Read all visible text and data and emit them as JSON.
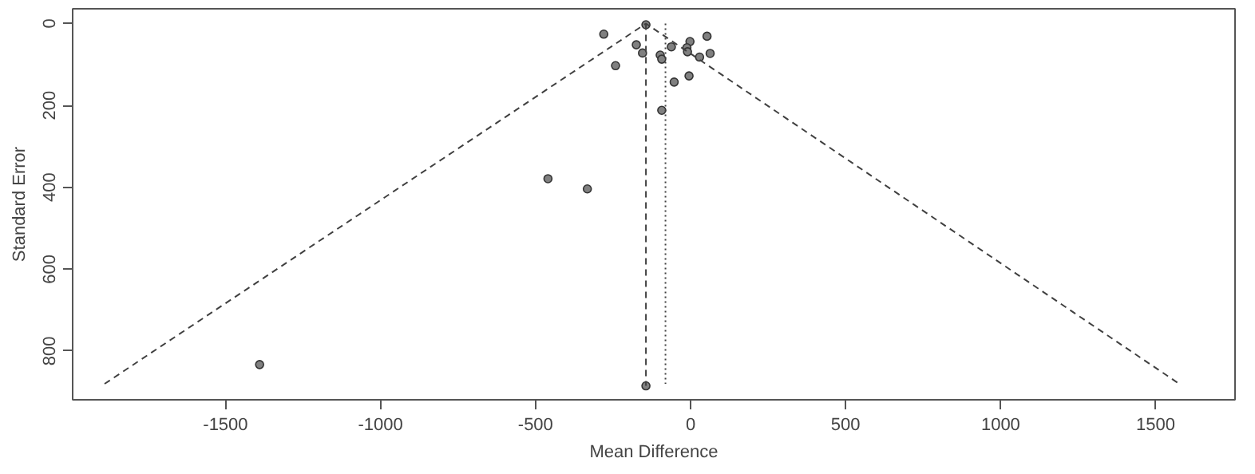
{
  "chart_data": {
    "type": "scatter",
    "xlabel": "Mean Difference",
    "ylabel": "Standard Error",
    "xlim": [
      -1993,
      1756
    ],
    "ylim": [
      919,
      -36
    ],
    "xticks": [
      -1500,
      -1000,
      -500,
      0,
      500,
      1000,
      1500
    ],
    "yticks": [
      0,
      200,
      400,
      600,
      800
    ],
    "grid": false,
    "series": [
      {
        "marker": "circle",
        "color": "#808080",
        "x": [
          -144,
          -280,
          -175,
          -155,
          -242,
          -98,
          -93,
          -62,
          -2,
          -12,
          -10,
          53,
          63,
          29,
          -53,
          -5,
          -93,
          -460,
          -333,
          -144,
          -1390
        ],
        "values": [
          3,
          26,
          52,
          72,
          103,
          77,
          87,
          57,
          44,
          59,
          69,
          31,
          73,
          82,
          143,
          128,
          212,
          379,
          404,
          885,
          833
        ]
      },
      {
        "type": "line",
        "line_style": "dashed",
        "color": "#404040",
        "x": [
          -1890,
          -144,
          1576
        ],
        "values": [
          880,
          0,
          880
        ]
      },
      {
        "type": "line",
        "line_style": "dashed",
        "color": "#404040",
        "x": [
          -144,
          -144
        ],
        "values": [
          0,
          885
        ]
      },
      {
        "type": "line",
        "line_style": "dotted",
        "color": "#404040",
        "x": [
          -81,
          -81
        ],
        "values": [
          0,
          880
        ]
      }
    ]
  }
}
